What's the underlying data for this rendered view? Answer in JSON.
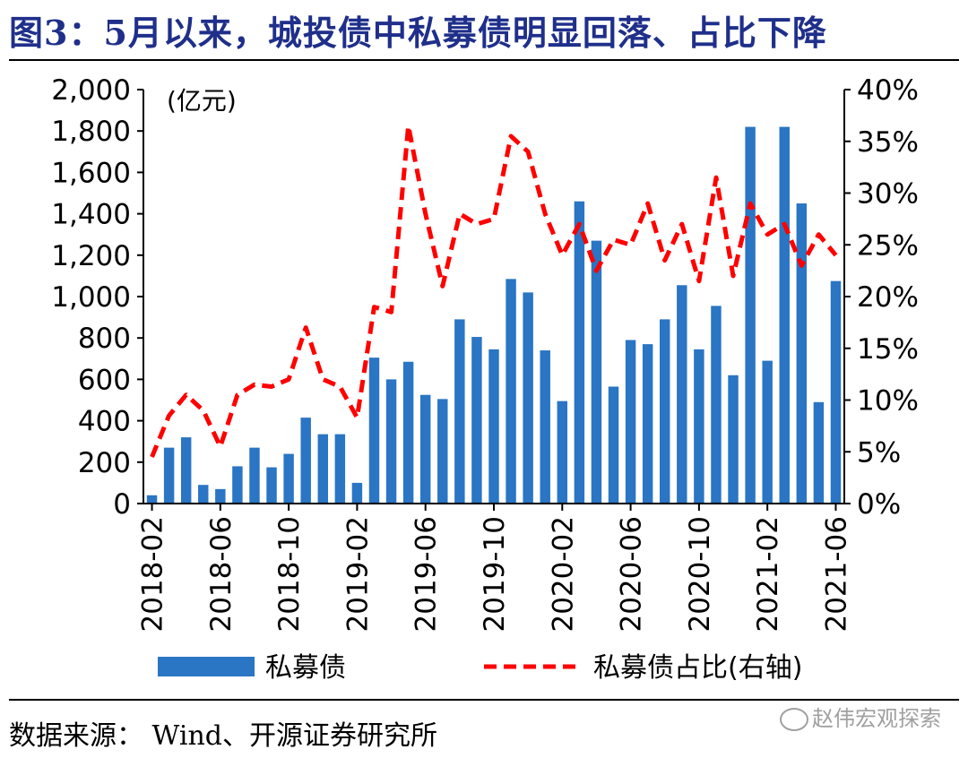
{
  "title": "图3：5月以来，城投债中私募债明显回落、占比下降",
  "source": "数据来源：  Wind、开源证券研究所",
  "watermark": "赵伟宏观探索",
  "colors": {
    "bar": "#2a75c4",
    "line": "#ff0000",
    "title": "#1f2f8a"
  },
  "chart_data": {
    "type": "bar+line",
    "unit_label": "(亿元)",
    "y_left": {
      "min": 0,
      "max": 2000,
      "ticks": [
        "0",
        "200",
        "400",
        "600",
        "800",
        "1,000",
        "1,200",
        "1,400",
        "1,600",
        "1,800",
        "2,000"
      ]
    },
    "y_right": {
      "min": 0,
      "max": 40,
      "ticks": [
        "0%",
        "5%",
        "10%",
        "15%",
        "20%",
        "25%",
        "30%",
        "35%",
        "40%"
      ]
    },
    "x_tick_labels": [
      "2018-02",
      "2018-06",
      "2018-10",
      "2019-02",
      "2019-06",
      "2019-10",
      "2020-02",
      "2020-06",
      "2020-10",
      "2021-02",
      "2021-06"
    ],
    "categories": [
      "2018-02",
      "2018-03",
      "2018-04",
      "2018-05",
      "2018-06",
      "2018-07",
      "2018-08",
      "2018-09",
      "2018-10",
      "2018-11",
      "2018-12",
      "2019-01",
      "2019-02",
      "2019-03",
      "2019-04",
      "2019-05",
      "2019-06",
      "2019-07",
      "2019-08",
      "2019-09",
      "2019-10",
      "2019-11",
      "2019-12",
      "2020-01",
      "2020-02",
      "2020-03",
      "2020-04",
      "2020-05",
      "2020-06",
      "2020-07",
      "2020-08",
      "2020-09",
      "2020-10",
      "2020-11",
      "2020-12",
      "2021-01",
      "2021-02",
      "2021-03",
      "2021-04",
      "2021-05",
      "2021-06"
    ],
    "series": [
      {
        "name": "私募债",
        "type": "bar",
        "axis": "left",
        "values": [
          40,
          270,
          320,
          90,
          70,
          180,
          270,
          175,
          240,
          415,
          335,
          335,
          100,
          705,
          600,
          685,
          525,
          505,
          890,
          805,
          745,
          1085,
          1020,
          740,
          495,
          1460,
          1270,
          565,
          790,
          770,
          890,
          1055,
          745,
          955,
          620,
          1820,
          690,
          1820,
          1450,
          490,
          1075
        ]
      },
      {
        "name": "私募债占比(右轴)",
        "type": "line",
        "axis": "right",
        "style": "dashed",
        "values": [
          4.5,
          8.5,
          10.5,
          9.0,
          5.5,
          10.5,
          11.5,
          11.3,
          12.0,
          17.0,
          12.0,
          11.3,
          8.3,
          19.0,
          18.5,
          36.5,
          28.0,
          21.0,
          28.0,
          27.0,
          27.5,
          35.5,
          34.0,
          28.0,
          24.0,
          27.0,
          22.5,
          25.5,
          25.0,
          29.0,
          23.5,
          27.0,
          21.5,
          31.5,
          22.0,
          29.0,
          26.0,
          27.0,
          23.0,
          26.0,
          24.0
        ]
      }
    ]
  }
}
